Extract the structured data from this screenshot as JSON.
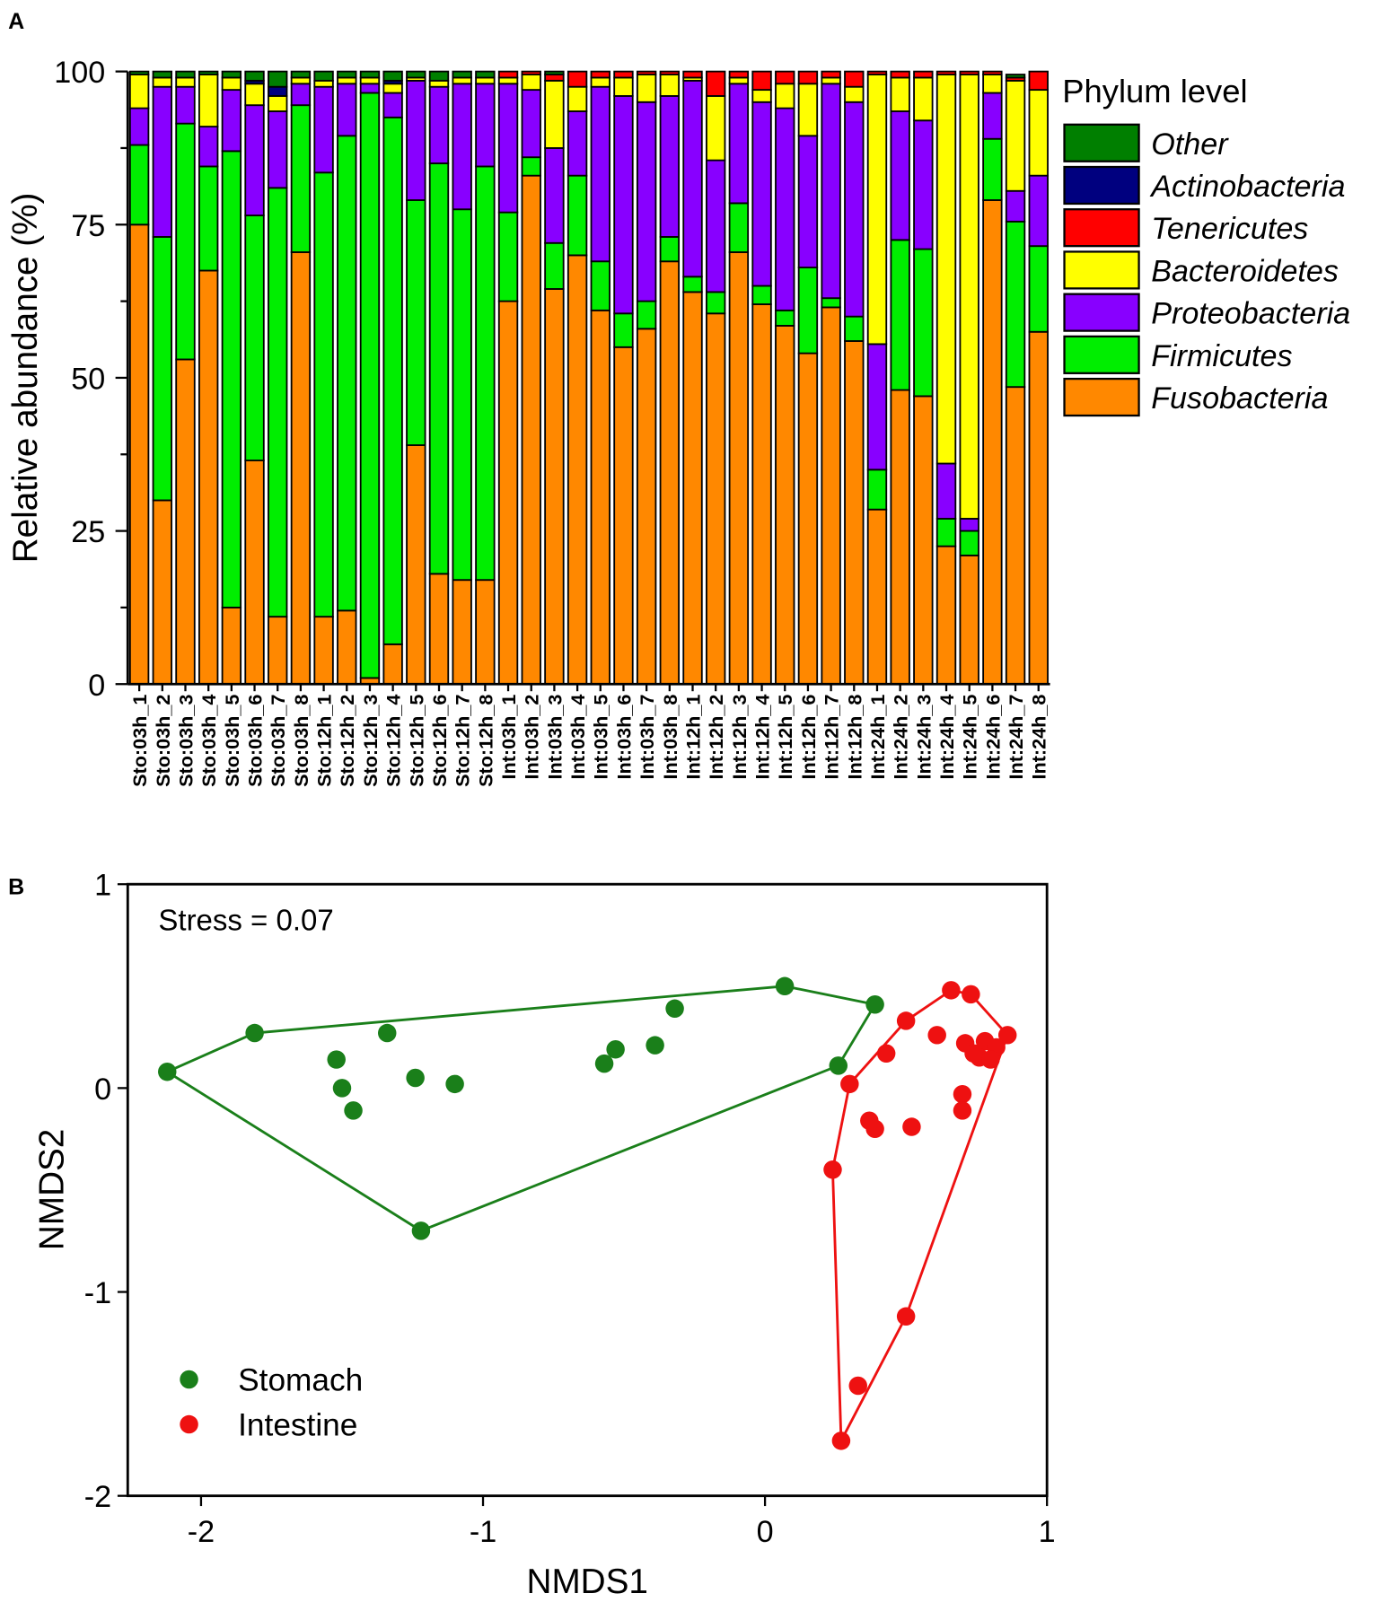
{
  "chart_data": [
    {
      "type": "bar",
      "stacked": true,
      "panel_label": "A",
      "ylabel": "Relative abundance (%)",
      "ylim": [
        0,
        100
      ],
      "yticks": [
        "0",
        "25",
        "50",
        "75",
        "100"
      ],
      "legend_title": "Phylum level",
      "legend_placement": "right",
      "categories": [
        "Sto:03h_1",
        "Sto:03h_2",
        "Sto:03h_3",
        "Sto:03h_4",
        "Sto:03h_5",
        "Sto:03h_6",
        "Sto:03h_7",
        "Sto:03h_8",
        "Sto:12h_1",
        "Sto:12h_2",
        "Sto:12h_3",
        "Sto:12h_4",
        "Sto:12h_5",
        "Sto:12h_6",
        "Sto:12h_7",
        "Sto:12h_8",
        "Int:03h_1",
        "Int:03h_2",
        "Int:03h_3",
        "Int:03h_4",
        "Int:03h_5",
        "Int:03h_6",
        "Int:03h_7",
        "Int:03h_8",
        "Int:12h_1",
        "Int:12h_2",
        "Int:12h_3",
        "Int:12h_4",
        "Int:12h_5",
        "Int:12h_6",
        "Int:12h_7",
        "Int:12h_8",
        "Int:24h_1",
        "Int:24h_2",
        "Int:24h_3",
        "Int:24h_4",
        "Int:24h_5",
        "Int:24h_6",
        "Int:24h_7",
        "Int:24h_8"
      ],
      "series": [
        {
          "name": "Fusobacteria",
          "color": "#ff8800",
          "values": [
            75,
            30,
            53,
            67.5,
            12.5,
            36.5,
            11,
            70.5,
            11,
            12,
            1,
            6.5,
            39,
            18,
            17,
            17,
            62.5,
            83,
            64.5,
            70,
            61,
            55,
            58,
            69,
            64,
            60.5,
            70.5,
            62,
            58.5,
            54,
            61.5,
            56,
            28.5,
            48,
            47,
            22.5,
            21,
            79,
            48.5,
            57.5
          ]
        },
        {
          "name": "Firmicutes",
          "color": "#00ee00",
          "values": [
            13,
            43,
            38.5,
            17,
            74.5,
            40,
            70,
            24,
            72.5,
            77.5,
            95.5,
            86,
            40,
            67,
            60.5,
            67.5,
            14.5,
            3,
            7.5,
            13,
            8,
            5.5,
            4.5,
            4,
            2.5,
            3.5,
            8,
            3,
            2.5,
            14,
            1.5,
            4,
            6.5,
            24.5,
            24,
            4.5,
            4,
            10,
            27,
            14
          ]
        },
        {
          "name": "Proteobacteria",
          "color": "#8800ff",
          "values": [
            6,
            24.5,
            6,
            6.5,
            10,
            18,
            12.5,
            3.5,
            14,
            8.5,
            1.5,
            4,
            19.5,
            12.5,
            20.5,
            13.5,
            21,
            11,
            15.5,
            10.5,
            28.5,
            35.5,
            32.5,
            23,
            32,
            21.5,
            19.5,
            30,
            33,
            21.5,
            35,
            35,
            20.5,
            21,
            21,
            9,
            2,
            7.5,
            5,
            11.5
          ]
        },
        {
          "name": "Bacteroidetes",
          "color": "#ffff00",
          "values": [
            5.5,
            1.5,
            1.5,
            8.5,
            2,
            3.5,
            2.5,
            1,
            1,
            1,
            1,
            1.5,
            0.5,
            1,
            1,
            1,
            1,
            2.5,
            11,
            4,
            1.5,
            3,
            4.5,
            3.5,
            0.5,
            10.5,
            1,
            2,
            4,
            8.5,
            1,
            2.5,
            44,
            5.5,
            7,
            63.5,
            72.5,
            3,
            18,
            14
          ]
        },
        {
          "name": "Tenericutes",
          "color": "#ff0000",
          "values": [
            0,
            0,
            0,
            0,
            0,
            0,
            0,
            0,
            0,
            0,
            0,
            0,
            0,
            0,
            0,
            0,
            1,
            0.5,
            1,
            2.5,
            1,
            1,
            0.5,
            0.5,
            1,
            4,
            1,
            3,
            2,
            2,
            1,
            2.5,
            0.5,
            1,
            1,
            0.5,
            0.5,
            0.5,
            0.5,
            3
          ]
        },
        {
          "name": "Actinobacteria",
          "color": "#00007f",
          "values": [
            0,
            0,
            0,
            0,
            0,
            0.5,
            1.5,
            0,
            0,
            0,
            0,
            0.5,
            0,
            0,
            0,
            0,
            0,
            0,
            0,
            0,
            0,
            0,
            0,
            0,
            0,
            0,
            0,
            0,
            0,
            0,
            0,
            0,
            0,
            0,
            0,
            0,
            0,
            0,
            0,
            0
          ]
        },
        {
          "name": "Other",
          "color": "#007f00",
          "values": [
            0.5,
            1,
            1,
            0.5,
            1,
            1.5,
            2.5,
            1,
            1.5,
            1,
            1,
            1.5,
            1,
            1.5,
            1,
            1,
            0,
            0,
            0.5,
            0,
            0,
            0,
            0,
            0,
            0,
            0,
            0,
            0,
            0,
            0,
            0,
            0,
            0,
            0,
            0,
            0,
            0,
            0,
            0.5,
            0
          ]
        }
      ],
      "legend_order": [
        "Other",
        "Actinobacteria",
        "Tenericutes",
        "Bacteroidetes",
        "Proteobacteria",
        "Firmicutes",
        "Fusobacteria"
      ]
    },
    {
      "type": "scatter",
      "panel_label": "B",
      "xlabel": "NMDS1",
      "ylabel": "NMDS2",
      "xlim": [
        -2.26,
        1
      ],
      "ylim": [
        -2,
        1
      ],
      "xticks": [
        "-2",
        "-1",
        "0",
        "1"
      ],
      "yticks": [
        "-2",
        "-1",
        "0",
        "1"
      ],
      "annotation": "Stress = 0.07",
      "legend_placement": "bottom-left",
      "series": [
        {
          "name": "Stomach",
          "color": "#1a7f1a",
          "points": [
            [
              -2.12,
              0.08
            ],
            [
              -1.81,
              0.27
            ],
            [
              -1.52,
              0.14
            ],
            [
              -1.5,
              0.0
            ],
            [
              -1.46,
              -0.11
            ],
            [
              -1.34,
              0.27
            ],
            [
              -1.24,
              0.05
            ],
            [
              -1.1,
              0.02
            ],
            [
              -1.22,
              -0.7
            ],
            [
              -0.57,
              0.12
            ],
            [
              -0.53,
              0.19
            ],
            [
              -0.39,
              0.21
            ],
            [
              -0.32,
              0.39
            ],
            [
              0.07,
              0.5
            ],
            [
              0.39,
              0.41
            ],
            [
              0.26,
              0.11
            ]
          ],
          "hull": [
            [
              -2.12,
              0.08
            ],
            [
              -1.81,
              0.27
            ],
            [
              0.07,
              0.5
            ],
            [
              0.39,
              0.41
            ],
            [
              0.26,
              0.11
            ],
            [
              -1.22,
              -0.7
            ]
          ]
        },
        {
          "name": "Intestine",
          "color": "#ee1111",
          "points": [
            [
              0.66,
              0.48
            ],
            [
              0.73,
              0.46
            ],
            [
              0.5,
              0.33
            ],
            [
              0.61,
              0.26
            ],
            [
              0.43,
              0.17
            ],
            [
              0.3,
              0.02
            ],
            [
              0.71,
              0.22
            ],
            [
              0.78,
              0.23
            ],
            [
              0.86,
              0.26
            ],
            [
              0.82,
              0.2
            ],
            [
              0.76,
              0.15
            ],
            [
              0.8,
              0.14
            ],
            [
              0.74,
              0.17
            ],
            [
              0.7,
              -0.03
            ],
            [
              0.7,
              -0.11
            ],
            [
              0.37,
              -0.16
            ],
            [
              0.39,
              -0.2
            ],
            [
              0.52,
              -0.19
            ],
            [
              0.24,
              -0.4
            ],
            [
              0.5,
              -1.12
            ],
            [
              0.33,
              -1.46
            ],
            [
              0.27,
              -1.73
            ]
          ],
          "hull": [
            [
              0.27,
              -1.73
            ],
            [
              0.24,
              -0.4
            ],
            [
              0.3,
              0.02
            ],
            [
              0.5,
              0.33
            ],
            [
              0.66,
              0.48
            ],
            [
              0.73,
              0.46
            ],
            [
              0.86,
              0.26
            ],
            [
              0.5,
              -1.12
            ]
          ]
        }
      ]
    }
  ]
}
